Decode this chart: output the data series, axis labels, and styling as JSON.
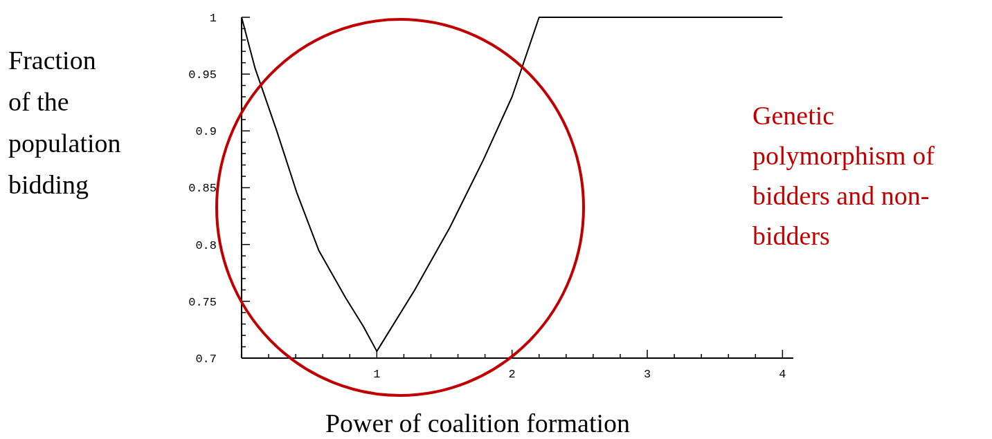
{
  "chart_data": {
    "type": "line",
    "xlabel": "Power of coalition formation",
    "ylabel": "Fraction of the population bidding",
    "annotations": [
      "Genetic polymorphism of bidders and non-bidders"
    ],
    "xlim": [
      0,
      4.08
    ],
    "ylim": [
      0.7,
      1.0
    ],
    "xticks": [
      {
        "value": 0.2,
        "label": null
      },
      {
        "value": 0.4,
        "label": null
      },
      {
        "value": 0.6,
        "label": null
      },
      {
        "value": 0.8,
        "label": null
      },
      1,
      {
        "value": 1.2,
        "label": null
      },
      {
        "value": 1.4,
        "label": null
      },
      {
        "value": 1.6,
        "label": null
      },
      {
        "value": 1.8,
        "label": null
      },
      2,
      {
        "value": 2.2,
        "label": null
      },
      {
        "value": 2.4,
        "label": null
      },
      {
        "value": 2.6,
        "label": null
      },
      {
        "value": 2.8,
        "label": null
      },
      3,
      {
        "value": 3.2,
        "label": null
      },
      {
        "value": 3.4,
        "label": null
      },
      {
        "value": 3.6,
        "label": null
      },
      {
        "value": 3.8,
        "label": null
      },
      4
    ],
    "yticks": [
      0.7,
      {
        "value": 0.71,
        "label": null
      },
      {
        "value": 0.72,
        "label": null
      },
      {
        "value": 0.73,
        "label": null
      },
      {
        "value": 0.74,
        "label": null
      },
      0.75,
      {
        "value": 0.76,
        "label": null
      },
      {
        "value": 0.77,
        "label": null
      },
      {
        "value": 0.78,
        "label": null
      },
      {
        "value": 0.79,
        "label": null
      },
      0.8,
      {
        "value": 0.81,
        "label": null
      },
      {
        "value": 0.82,
        "label": null
      },
      {
        "value": 0.83,
        "label": null
      },
      {
        "value": 0.84,
        "label": null
      },
      0.85,
      {
        "value": 0.86,
        "label": null
      },
      {
        "value": 0.87,
        "label": null
      },
      {
        "value": 0.88,
        "label": null
      },
      {
        "value": 0.89,
        "label": null
      },
      0.9,
      {
        "value": 0.91,
        "label": null
      },
      {
        "value": 0.92,
        "label": null
      },
      {
        "value": 0.93,
        "label": null
      },
      {
        "value": 0.94,
        "label": null
      },
      0.95,
      {
        "value": 0.96,
        "label": null
      },
      {
        "value": 0.97,
        "label": null
      },
      {
        "value": 0.98,
        "label": null
      },
      {
        "value": 0.99,
        "label": null
      },
      1
    ],
    "grid": false,
    "marker": "none",
    "line_style": "solid",
    "series": [
      {
        "color": "#000000",
        "x": [
          0,
          0.1,
          0.26,
          0.41,
          0.57,
          0.77,
          0.9,
          1.0,
          1.28,
          1.54,
          1.79,
          2.0,
          2.2,
          4.0
        ],
        "values": [
          1.0,
          0.955,
          0.9,
          0.845,
          0.795,
          0.753,
          0.728,
          0.706,
          0.76,
          0.815,
          0.875,
          0.93,
          1.0,
          1.0
        ]
      }
    ]
  }
}
